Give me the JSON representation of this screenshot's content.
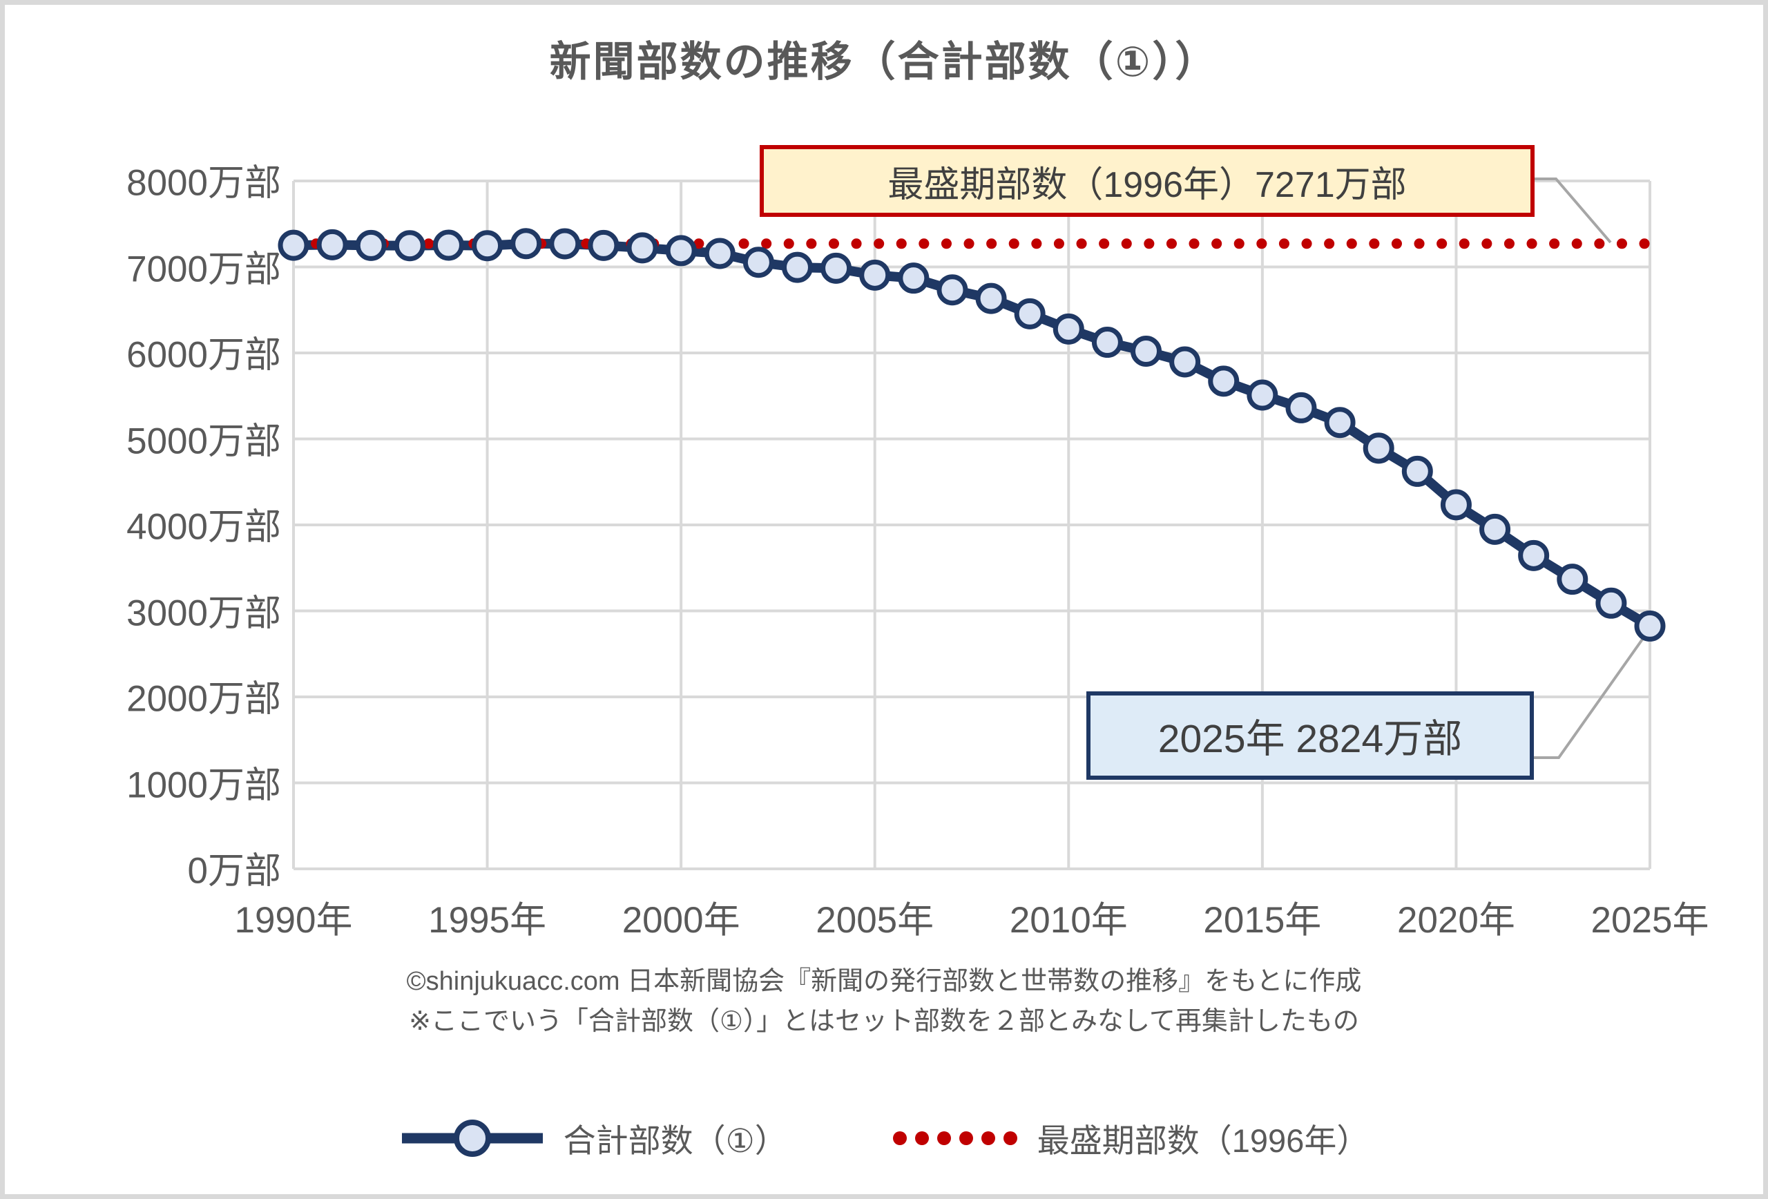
{
  "page": {
    "title": "新聞部数の推移（合計部数（①））",
    "source_line1": "©shinjukuacc.com 日本新聞協会『新聞の発行部数と世帯数の推移』をもとに作成",
    "source_line2": "※ここでいう「合計部数（①）」とはセット部数を２部とみなして再集計したもの"
  },
  "annotations": {
    "peak_box_text": "最盛期部数（1996年）7271万部",
    "latest_box_text": "2025年 2824万部"
  },
  "legend": {
    "series_label": "合計部数（①）",
    "peak_label": "最盛期部数（1996年）"
  },
  "colors": {
    "line_navy": "#1f3864",
    "marker_fill": "#dae3f3",
    "peak_red": "#c00000",
    "grid_gray": "#d9d9d9",
    "leader_gray": "#a6a6a6",
    "text_gray": "#595959",
    "peak_box_fill": "#fff2cc",
    "latest_box_fill": "#deebf7"
  },
  "chart_data": {
    "type": "line",
    "title": "新聞部数の推移（合計部数（①））",
    "unit": "万部",
    "grid": true,
    "legend_position": "bottom",
    "x": [
      1990,
      1991,
      1992,
      1993,
      1994,
      1995,
      1996,
      1997,
      1998,
      1999,
      2000,
      2001,
      2002,
      2003,
      2004,
      2005,
      2006,
      2007,
      2008,
      2009,
      2010,
      2011,
      2012,
      2013,
      2014,
      2015,
      2016,
      2017,
      2018,
      2019,
      2020,
      2021,
      2022,
      2023,
      2024,
      2025
    ],
    "series": [
      {
        "name": "合計部数（①）",
        "style": "solid-line-circle-markers",
        "values": [
          7252,
          7258,
          7250,
          7247,
          7253,
          7247,
          7271,
          7269,
          7250,
          7222,
          7190,
          7157,
          7054,
          6995,
          6985,
          6905,
          6870,
          6733,
          6634,
          6455,
          6278,
          6124,
          6020,
          5896,
          5672,
          5510,
          5362,
          5191,
          4893,
          4623,
          4234,
          3949,
          3644,
          3368,
          3090,
          2824
        ]
      },
      {
        "name": "最盛期部数（1996年）",
        "style": "dotted-constant-line",
        "value": 7271,
        "peak_year": 1996
      }
    ],
    "x_axis": {
      "tick_years": [
        1990,
        1995,
        2000,
        2005,
        2010,
        2015,
        2020,
        2025
      ],
      "tick_labels": [
        "1990年",
        "1995年",
        "2000年",
        "2005年",
        "2010年",
        "2015年",
        "2020年",
        "2025年"
      ]
    },
    "y_axis": {
      "min": 0,
      "max": 8000,
      "tick_step": 1000,
      "tick_values": [
        8000,
        7000,
        6000,
        5000,
        4000,
        3000,
        2000,
        1000,
        0
      ],
      "tick_labels": [
        "8000万部",
        "7000万部",
        "6000万部",
        "5000万部",
        "4000万部",
        "3000万部",
        "2000万部",
        "1000万部",
        "0万部"
      ]
    },
    "callouts": [
      {
        "text": "最盛期部数（1996年）7271万部",
        "refers_to": "peak dotted line"
      },
      {
        "text": "2025年 2824万部",
        "refers_to": "last data point"
      }
    ]
  }
}
